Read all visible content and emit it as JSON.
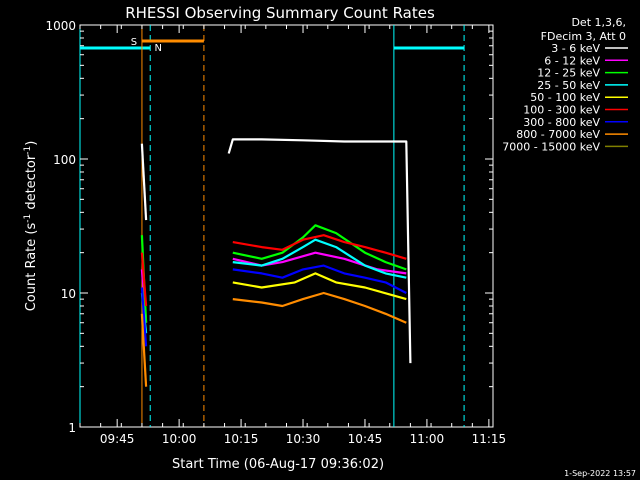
{
  "chart_data": {
    "type": "line",
    "title": "RHESSI Observing Summary Count Rates",
    "xlabel": "Start Time (06-Aug-17 09:36:02)",
    "ylabel_main": "Count Rate (s",
    "ylabel_sup1": "-1",
    "ylabel_mid": " detector",
    "ylabel_sup2": "-1",
    "ylabel_end": ")",
    "y_scale": "log",
    "xlim": [
      "09:36",
      "11:16"
    ],
    "ylim": [
      1,
      1000
    ],
    "x_ticks": [
      "09:45",
      "10:00",
      "10:15",
      "10:30",
      "10:45",
      "11:00",
      "11:15"
    ],
    "y_ticks": [
      "1",
      "10",
      "100",
      "1000"
    ],
    "legend_header": [
      "Det 1,3,6,",
      "FDecim 3, Att 0"
    ],
    "legend_position": "top-right",
    "series": [
      {
        "name": "3 - 6 keV",
        "color": "#ffffff",
        "segments": [
          {
            "x": [
              "09:51",
              "09:52"
            ],
            "y": [
              130,
              35
            ]
          },
          {
            "x": [
              "10:12",
              "10:13",
              "10:20",
              "10:30",
              "10:40",
              "10:50",
              "10:55",
              "10:56"
            ],
            "y": [
              110,
              140,
              140,
              138,
              135,
              135,
              135,
              3
            ]
          }
        ]
      },
      {
        "name": "6 - 12 keV",
        "color": "#ff00ff",
        "segments": [
          {
            "x": [
              "09:51",
              "09:52"
            ],
            "y": [
              15,
              6
            ]
          },
          {
            "x": [
              "10:13",
              "10:20",
              "10:25",
              "10:33",
              "10:40",
              "10:48",
              "10:55"
            ],
            "y": [
              18,
              16,
              17,
              20,
              18,
              15,
              14
            ]
          }
        ]
      },
      {
        "name": "12 - 25 keV",
        "color": "#00ff00",
        "segments": [
          {
            "x": [
              "09:51",
              "09:52"
            ],
            "y": [
              27,
              6
            ]
          },
          {
            "x": [
              "10:13",
              "10:20",
              "10:25",
              "10:30",
              "10:33",
              "10:38",
              "10:45",
              "10:50",
              "10:55"
            ],
            "y": [
              20,
              18,
              20,
              26,
              32,
              28,
              20,
              17,
              15
            ]
          }
        ]
      },
      {
        "name": "25 - 50 keV",
        "color": "#00ffff",
        "segments": [
          {
            "x": [
              "09:51",
              "09:52"
            ],
            "y": [
              10,
              5
            ]
          },
          {
            "x": [
              "10:13",
              "10:20",
              "10:25",
              "10:30",
              "10:33",
              "10:38",
              "10:45",
              "10:50",
              "10:55"
            ],
            "y": [
              17,
              16,
              18,
              22,
              25,
              22,
              16,
              14,
              13
            ]
          }
        ]
      },
      {
        "name": "50 - 100 keV",
        "color": "#ffff00",
        "segments": [
          {
            "x": [
              "10:13",
              "10:20",
              "10:28",
              "10:33",
              "10:38",
              "10:45",
              "10:55"
            ],
            "y": [
              12,
              11,
              12,
              14,
              12,
              11,
              9
            ]
          }
        ]
      },
      {
        "name": "100 - 300 keV",
        "color": "#ff0000",
        "segments": [
          {
            "x": [
              "09:51",
              "09:52"
            ],
            "y": [
              20,
              8
            ]
          },
          {
            "x": [
              "10:13",
              "10:20",
              "10:25",
              "10:30",
              "10:35",
              "10:40",
              "10:45",
              "10:50",
              "10:55"
            ],
            "y": [
              24,
              22,
              21,
              25,
              27,
              24,
              22,
              20,
              18
            ]
          }
        ]
      },
      {
        "name": "300 - 800 keV",
        "color": "#0000ff",
        "segments": [
          {
            "x": [
              "09:51",
              "09:52"
            ],
            "y": [
              11,
              4
            ]
          },
          {
            "x": [
              "10:13",
              "10:20",
              "10:25",
              "10:30",
              "10:35",
              "10:40",
              "10:45",
              "10:50",
              "10:55"
            ],
            "y": [
              15,
              14,
              13,
              15,
              16,
              14,
              13,
              12,
              10
            ]
          }
        ]
      },
      {
        "name": "800 - 7000 keV",
        "color": "#ff8c00",
        "segments": [
          {
            "x": [
              "09:51",
              "09:52"
            ],
            "y": [
              7,
              2
            ]
          },
          {
            "x": [
              "10:13",
              "10:20",
              "10:25",
              "10:30",
              "10:35",
              "10:40",
              "10:45",
              "10:50",
              "10:55"
            ],
            "y": [
              9,
              8.5,
              8,
              9,
              10,
              9,
              8,
              7,
              6
            ]
          }
        ]
      },
      {
        "name": "7000 - 15000 keV",
        "color": "#808000",
        "segments": []
      }
    ],
    "markers": {
      "saa": {
        "label": "S",
        "color": "#ff8c00",
        "bar": [
          "09:51",
          "10:06"
        ],
        "line_solid": "09:51",
        "line_dashed": "10:06"
      },
      "night": {
        "label": "N",
        "color": "#00ffff",
        "bars": [
          [
            "09:36",
            "09:53"
          ],
          [
            "10:52",
            "11:09"
          ]
        ],
        "lines_solid": [
          "09:36",
          "10:52"
        ],
        "lines_dashed": [
          "09:53",
          "11:09"
        ]
      }
    }
  },
  "footer_date": "1-Sep-2022 13:57"
}
